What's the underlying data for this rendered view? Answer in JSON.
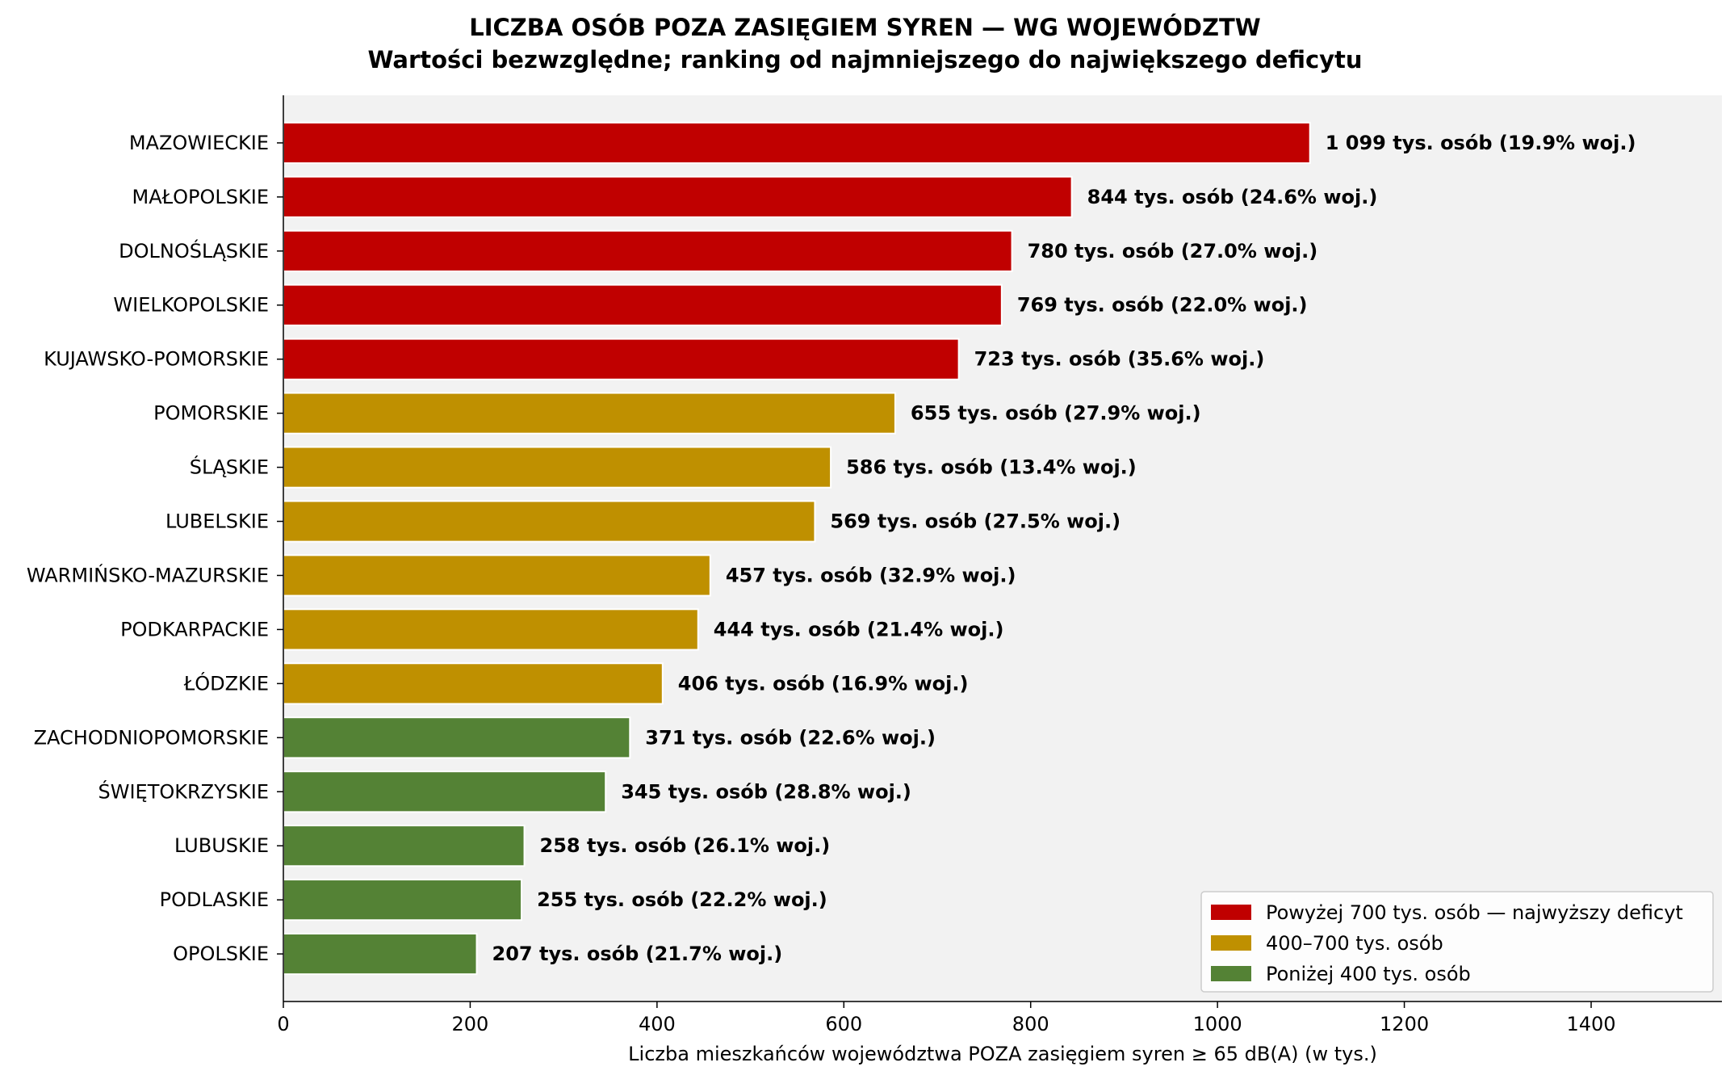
{
  "chart_data": {
    "type": "bar",
    "orientation": "horizontal",
    "title": "LICZBA OSÓB POZA ZASIĘGIEM SYREN — WG WOJEWÓDZTW",
    "subtitle": "Wartości bezwzględne; ranking od najmniejszego do największego deficytu",
    "xlabel": "Liczba mieszkańców województwa POZA zasięgiem syren ≥ 65 dB(A) (w tys.)",
    "ylabel": "",
    "xlim": [
      0,
      1540
    ],
    "xticks": [
      0,
      200,
      400,
      600,
      800,
      1000,
      1200,
      1400
    ],
    "grid": false,
    "background": "#f2f2f2",
    "legend_position": "bottom-right",
    "categories": [
      "MAZOWIECKIE",
      "MAŁOPOLSKIE",
      "DOLNOŚLĄSKIE",
      "WIELKOPOLSKIE",
      "KUJAWSKO-POMORSKIE",
      "POMORSKIE",
      "ŚLĄSKIE",
      "LUBELSKIE",
      "WARMIŃSKO-MAZURSKIE",
      "PODKARPACKIE",
      "ŁÓDZKIE",
      "ZACHODNIOPOMORSKIE",
      "ŚWIĘTOKRZYSKIE",
      "LUBUSKIE",
      "PODLASKIE",
      "OPOLSKIE"
    ],
    "values": [
      1099,
      844,
      780,
      769,
      723,
      655,
      586,
      569,
      457,
      444,
      406,
      371,
      345,
      258,
      255,
      207
    ],
    "data_labels": [
      "1 099 tys. osób (19.9% woj.)",
      "844 tys. osób (24.6% woj.)",
      "780 tys. osób (27.0% woj.)",
      "769 tys. osób (22.0% woj.)",
      "723 tys. osób (35.6% woj.)",
      "655 tys. osób (27.9% woj.)",
      "586 tys. osób (13.4% woj.)",
      "569 tys. osób (27.5% woj.)",
      "457 tys. osób (32.9% woj.)",
      "444 tys. osób (21.4% woj.)",
      "406 tys. osób (16.9% woj.)",
      "371 tys. osób (22.6% woj.)",
      "345 tys. osób (28.8% woj.)",
      "258 tys. osób (26.1% woj.)",
      "255 tys. osób (22.2% woj.)",
      "207 tys. osób (21.7% woj.)"
    ],
    "group": [
      "high",
      "high",
      "high",
      "high",
      "high",
      "mid",
      "mid",
      "mid",
      "mid",
      "mid",
      "mid",
      "low",
      "low",
      "low",
      "low",
      "low"
    ],
    "colors": {
      "high": "#c00000",
      "mid": "#bf9000",
      "low": "#548235"
    },
    "legend": [
      {
        "key": "high",
        "label": "Powyżej 700 tys. osób — najwyższy deficyt"
      },
      {
        "key": "mid",
        "label": "400–700 tys. osób"
      },
      {
        "key": "low",
        "label": "Poniżej 400 tys. osób"
      }
    ]
  }
}
